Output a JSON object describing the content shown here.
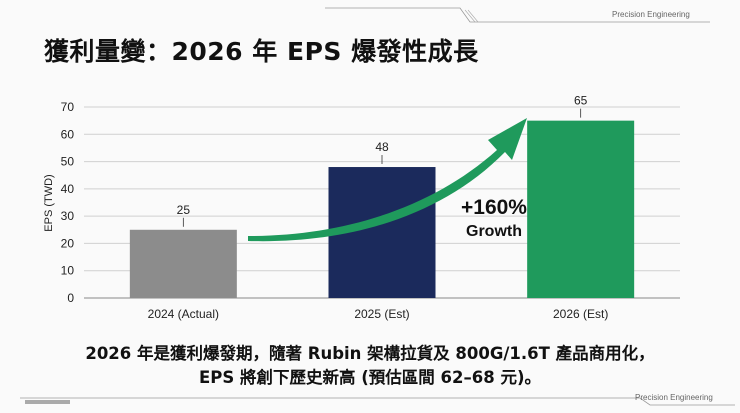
{
  "brand": {
    "top": "Precision Engineering",
    "bottom": "Precision Engineering"
  },
  "title": "獲利量變：2026 年 EPS 爆發性成長",
  "chart_data": {
    "type": "bar",
    "ylabel": "EPS (TWD)",
    "xlabel": "",
    "ylim": [
      0,
      70
    ],
    "yticks": [
      0,
      10,
      20,
      30,
      40,
      50,
      60,
      70
    ],
    "grid": true,
    "categories": [
      "2024 (Actual)",
      "2025 (Est)",
      "2026 (Est)"
    ],
    "values": [
      25,
      48,
      65
    ],
    "data_labels": [
      "25",
      "48",
      "65"
    ],
    "colors": [
      "#8c8c8c",
      "#1b2a5c",
      "#1f9a5c"
    ],
    "annotation": {
      "line1": "+160%",
      "line2": "Growth",
      "arrow_color": "#1f9a5c"
    }
  },
  "caption": {
    "line1": "2026 年是獲利爆發期，隨著 Rubin 架構拉貨及 800G/1.6T 產品商用化，",
    "line2": "EPS 將創下歷史新高 (預估區間 62–68 元)。"
  }
}
